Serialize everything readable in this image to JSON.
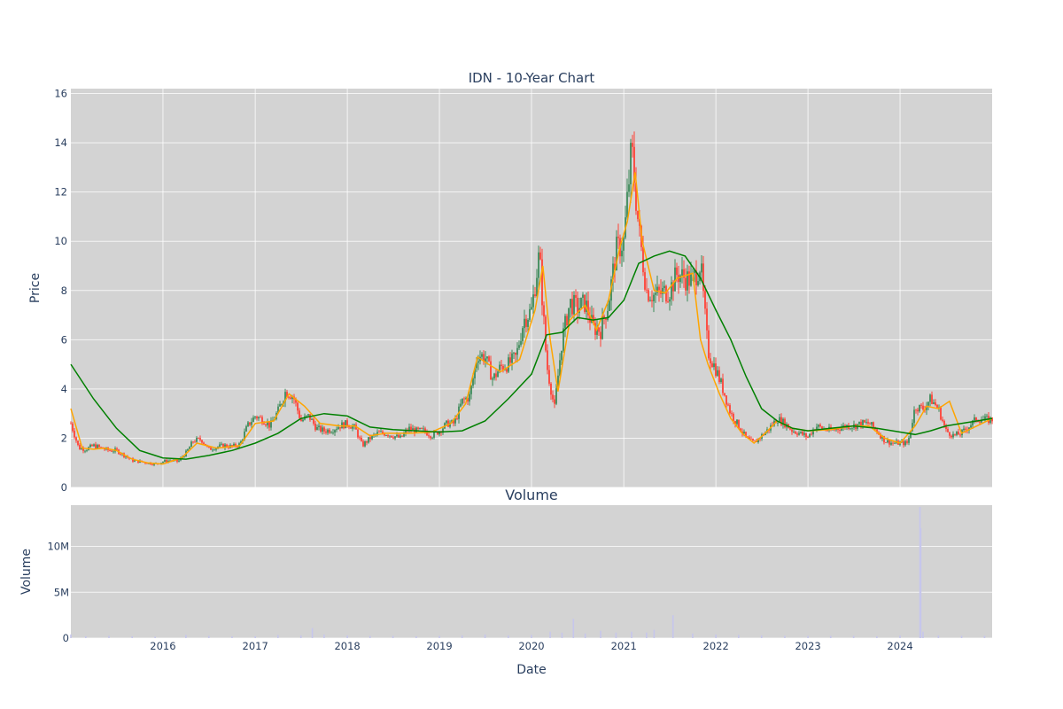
{
  "chart_data": [
    {
      "type": "candlestick",
      "title": "IDN - 10-Year Chart",
      "xlabel": "",
      "ylabel": "Price",
      "ylim": [
        0,
        16.2
      ],
      "xlim": [
        "2015-01-01",
        "2024-12-31"
      ],
      "y_ticks": [
        0,
        2,
        4,
        6,
        8,
        10,
        12,
        14,
        16
      ],
      "grid": true,
      "background": "#d3d3d3",
      "colors": {
        "up": "#3d8b5a",
        "down": "#ff4136",
        "ma_short": "#ffa500",
        "ma_long": "#008000"
      },
      "series": [
        {
          "kind": "close",
          "x": [
            "2015-01-01",
            "2015-02-01",
            "2015-03-01",
            "2015-04-01",
            "2015-05-01",
            "2015-06-01",
            "2015-07-01",
            "2015-08-01",
            "2015-09-01",
            "2015-10-01",
            "2015-11-01",
            "2015-12-01",
            "2016-01-01",
            "2016-02-01",
            "2016-03-01",
            "2016-04-01",
            "2016-05-01",
            "2016-06-01",
            "2016-07-01",
            "2016-08-01",
            "2016-09-01",
            "2016-10-01",
            "2016-11-01",
            "2016-12-01",
            "2017-01-01",
            "2017-02-01",
            "2017-03-01",
            "2017-04-01",
            "2017-05-01",
            "2017-06-01",
            "2017-07-01",
            "2017-08-01",
            "2017-09-01",
            "2017-10-01",
            "2017-11-01",
            "2017-12-01",
            "2018-01-01",
            "2018-02-01",
            "2018-03-01",
            "2018-04-01",
            "2018-05-01",
            "2018-06-01",
            "2018-07-01",
            "2018-08-01",
            "2018-09-01",
            "2018-10-01",
            "2018-11-01",
            "2018-12-01",
            "2019-01-01",
            "2019-02-01",
            "2019-03-01",
            "2019-04-01",
            "2019-05-01",
            "2019-06-01",
            "2019-07-01",
            "2019-08-01",
            "2019-09-01",
            "2019-10-01",
            "2019-11-01",
            "2019-12-01",
            "2020-01-01",
            "2020-02-01",
            "2020-03-01",
            "2020-04-01",
            "2020-05-01",
            "2020-06-01",
            "2020-07-01",
            "2020-08-01",
            "2020-09-01",
            "2020-10-01",
            "2020-11-01",
            "2020-12-01",
            "2021-01-01",
            "2021-02-01",
            "2021-03-01",
            "2021-04-01",
            "2021-05-01",
            "2021-06-01",
            "2021-07-01",
            "2021-08-01",
            "2021-09-01",
            "2021-10-01",
            "2021-11-01",
            "2021-12-01",
            "2022-01-01",
            "2022-02-01",
            "2022-03-01",
            "2022-04-01",
            "2022-05-01",
            "2022-06-01",
            "2022-07-01",
            "2022-08-01",
            "2022-09-01",
            "2022-10-01",
            "2022-11-01",
            "2022-12-01",
            "2023-01-01",
            "2023-02-01",
            "2023-03-01",
            "2023-04-01",
            "2023-05-01",
            "2023-06-01",
            "2023-07-01",
            "2023-08-01",
            "2023-09-01",
            "2023-10-01",
            "2023-11-01",
            "2023-12-01",
            "2024-01-01",
            "2024-02-01",
            "2024-03-01",
            "2024-04-01",
            "2024-05-01",
            "2024-06-01",
            "2024-07-01",
            "2024-08-01",
            "2024-09-01",
            "2024-10-01",
            "2024-11-01",
            "2024-12-01"
          ],
          "values": [
            2.6,
            1.6,
            1.55,
            1.7,
            1.6,
            1.5,
            1.5,
            1.3,
            1.1,
            1.05,
            1.0,
            0.95,
            1.05,
            1.1,
            1.05,
            1.4,
            1.9,
            1.95,
            1.55,
            1.65,
            1.7,
            1.65,
            1.75,
            2.5,
            2.9,
            2.75,
            2.5,
            3.1,
            3.9,
            3.7,
            2.7,
            2.9,
            2.4,
            2.3,
            2.35,
            2.5,
            2.6,
            2.4,
            1.7,
            2.0,
            2.2,
            2.2,
            2.1,
            2.0,
            2.4,
            2.3,
            2.3,
            2.1,
            2.3,
            2.6,
            2.6,
            3.5,
            3.7,
            5.4,
            5.3,
            4.4,
            4.9,
            5.0,
            5.3,
            6.8,
            7.2,
            9.5,
            5.0,
            3.2,
            6.0,
            7.5,
            7.3,
            7.5,
            6.5,
            6.4,
            7.5,
            9.6,
            10.0,
            13.8,
            10.5,
            8.0,
            7.8,
            7.9,
            8.0,
            8.7,
            8.5,
            8.4,
            9.1,
            5.5,
            4.8,
            3.9,
            3.0,
            2.5,
            2.0,
            1.8,
            2.1,
            2.4,
            2.8,
            2.6,
            2.3,
            2.2,
            2.05,
            2.5,
            2.4,
            2.3,
            2.4,
            2.5,
            2.5,
            2.6,
            2.6,
            2.3,
            1.9,
            1.8,
            1.8,
            1.8,
            3.3,
            3.2,
            3.6,
            3.2,
            2.3,
            2.1,
            2.2,
            2.5,
            2.8,
            2.75
          ]
        },
        {
          "kind": "moving_average_short",
          "x": [
            "2015-01-01",
            "2015-02-15",
            "2015-04-01",
            "2015-05-15",
            "2015-07-01",
            "2015-09-01",
            "2015-11-01",
            "2016-01-01",
            "2016-03-15",
            "2016-05-15",
            "2016-08-01",
            "2016-11-01",
            "2017-01-01",
            "2017-03-15",
            "2017-05-15",
            "2017-07-15",
            "2017-09-15",
            "2017-12-01",
            "2018-02-01",
            "2018-04-01",
            "2018-06-01",
            "2018-09-01",
            "2018-12-01",
            "2019-02-15",
            "2019-04-15",
            "2019-06-01",
            "2019-07-15",
            "2019-09-01",
            "2019-11-15",
            "2020-01-15",
            "2020-02-15",
            "2020-03-15",
            "2020-04-15",
            "2020-06-01",
            "2020-08-01",
            "2020-09-15",
            "2020-11-01",
            "2020-12-15",
            "2021-01-15",
            "2021-02-15",
            "2021-03-15",
            "2021-05-01",
            "2021-06-15",
            "2021-08-01",
            "2021-10-01",
            "2021-11-01",
            "2021-12-01",
            "2022-01-15",
            "2022-03-01",
            "2022-04-15",
            "2022-06-01",
            "2022-07-15",
            "2022-09-01",
            "2022-11-01",
            "2023-01-01",
            "2023-04-01",
            "2023-07-01",
            "2023-09-01",
            "2023-11-01",
            "2024-01-01",
            "2024-03-01",
            "2024-04-15",
            "2024-06-01",
            "2024-07-15",
            "2024-09-01",
            "2024-11-01",
            "2024-12-31"
          ],
          "values": [
            3.2,
            1.6,
            1.55,
            1.6,
            1.5,
            1.15,
            1.0,
            0.95,
            1.2,
            1.8,
            1.6,
            1.7,
            2.6,
            2.7,
            3.8,
            3.3,
            2.6,
            2.5,
            2.5,
            2.1,
            2.2,
            2.2,
            2.25,
            2.6,
            3.4,
            5.3,
            5.0,
            4.7,
            5.2,
            7.2,
            9.0,
            6.0,
            3.9,
            6.8,
            7.4,
            6.4,
            7.6,
            9.7,
            10.8,
            12.8,
            10.0,
            8.0,
            7.9,
            8.5,
            8.7,
            6.0,
            5.0,
            3.8,
            2.8,
            2.2,
            1.8,
            2.2,
            2.7,
            2.4,
            2.3,
            2.35,
            2.5,
            2.5,
            2.0,
            1.8,
            2.5,
            3.3,
            3.2,
            3.5,
            2.2,
            2.5,
            2.8
          ]
        },
        {
          "kind": "moving_average_long",
          "x": [
            "2015-01-01",
            "2015-04-01",
            "2015-07-01",
            "2015-10-01",
            "2016-01-01",
            "2016-04-01",
            "2016-07-01",
            "2016-10-01",
            "2017-01-01",
            "2017-04-01",
            "2017-07-01",
            "2017-10-01",
            "2018-01-01",
            "2018-04-01",
            "2018-07-01",
            "2018-10-01",
            "2019-01-01",
            "2019-04-01",
            "2019-07-01",
            "2019-10-01",
            "2020-01-01",
            "2020-03-01",
            "2020-05-01",
            "2020-07-01",
            "2020-09-01",
            "2020-11-01",
            "2021-01-01",
            "2021-03-01",
            "2021-05-01",
            "2021-07-01",
            "2021-09-01",
            "2021-11-01",
            "2022-01-01",
            "2022-03-01",
            "2022-05-01",
            "2022-07-01",
            "2022-09-01",
            "2022-11-01",
            "2023-01-01",
            "2023-04-01",
            "2023-07-01",
            "2023-10-01",
            "2024-01-01",
            "2024-03-01",
            "2024-05-01",
            "2024-07-01",
            "2024-09-01",
            "2024-12-31"
          ],
          "values": [
            5.0,
            3.6,
            2.4,
            1.5,
            1.2,
            1.15,
            1.3,
            1.5,
            1.8,
            2.2,
            2.8,
            3.0,
            2.9,
            2.45,
            2.35,
            2.3,
            2.25,
            2.3,
            2.7,
            3.6,
            4.6,
            6.2,
            6.3,
            6.9,
            6.8,
            6.9,
            7.6,
            9.1,
            9.4,
            9.6,
            9.4,
            8.5,
            7.2,
            6.0,
            4.5,
            3.2,
            2.7,
            2.4,
            2.3,
            2.4,
            2.5,
            2.4,
            2.25,
            2.15,
            2.3,
            2.5,
            2.6,
            2.8
          ]
        }
      ]
    },
    {
      "type": "bar",
      "title": "Volume",
      "xlabel": "Date",
      "ylabel": "Volume",
      "ylim": [
        0,
        14500000
      ],
      "y_ticks": [
        0,
        5000000,
        10000000
      ],
      "y_tick_labels": [
        "0",
        "5M",
        "10M"
      ],
      "x_ticks": [
        "2016-01-01",
        "2017-01-01",
        "2018-01-01",
        "2019-01-01",
        "2020-01-01",
        "2021-01-01",
        "2022-01-01",
        "2023-01-01",
        "2024-01-01"
      ],
      "x_tick_labels": [
        "2016",
        "2017",
        "2018",
        "2019",
        "2020",
        "2021",
        "2022",
        "2023",
        "2024"
      ],
      "grid": true,
      "bar_color": "#c6c6ec",
      "x": [
        "2015-01-01",
        "2015-03-01",
        "2015-06-01",
        "2015-09-01",
        "2015-12-01",
        "2016-04-01",
        "2016-07-01",
        "2016-10-01",
        "2017-01-01",
        "2017-04-01",
        "2017-07-01",
        "2017-08-15",
        "2017-10-01",
        "2018-01-01",
        "2018-04-01",
        "2018-07-01",
        "2018-10-01",
        "2019-01-01",
        "2019-04-01",
        "2019-07-01",
        "2019-10-01",
        "2020-01-01",
        "2020-03-15",
        "2020-05-01",
        "2020-06-15",
        "2020-08-01",
        "2020-10-01",
        "2020-12-01",
        "2021-02-01",
        "2021-04-01",
        "2021-05-01",
        "2021-07-15",
        "2021-10-01",
        "2022-01-01",
        "2022-04-01",
        "2022-07-01",
        "2022-10-01",
        "2023-01-01",
        "2023-04-01",
        "2023-07-01",
        "2023-10-01",
        "2024-01-01",
        "2024-03-20",
        "2024-03-23",
        "2024-04-01",
        "2024-06-01",
        "2024-09-01",
        "2024-12-01"
      ],
      "values": [
        400000,
        200000,
        250000,
        200000,
        150000,
        350000,
        250000,
        200000,
        200000,
        350000,
        300000,
        1100000,
        400000,
        300000,
        250000,
        250000,
        200000,
        250000,
        300000,
        400000,
        300000,
        350000,
        700000,
        600000,
        2100000,
        500000,
        800000,
        600000,
        700000,
        600000,
        900000,
        2500000,
        500000,
        400000,
        350000,
        300000,
        250000,
        250000,
        250000,
        250000,
        200000,
        300000,
        14300000,
        12000000,
        700000,
        300000,
        250000,
        250000
      ]
    }
  ]
}
